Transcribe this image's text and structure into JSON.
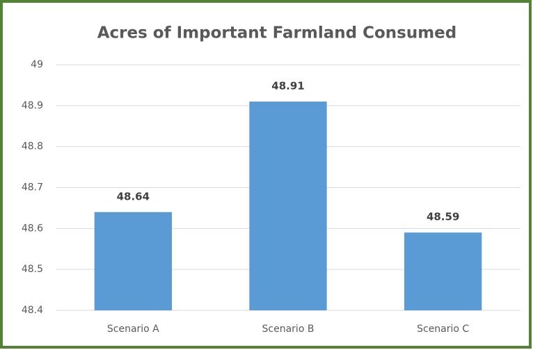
{
  "chart_data": {
    "type": "bar",
    "title": "Acres of Important Farmland Consumed",
    "categories": [
      "Scenario A",
      "Scenario B",
      "Scenario C"
    ],
    "values": [
      48.64,
      48.91,
      48.59
    ],
    "color": "#5b9bd5",
    "ylim": [
      48.4,
      49
    ],
    "yticks": [
      48.4,
      48.5,
      48.6,
      48.7,
      48.8,
      48.9,
      49
    ],
    "grid": true
  }
}
